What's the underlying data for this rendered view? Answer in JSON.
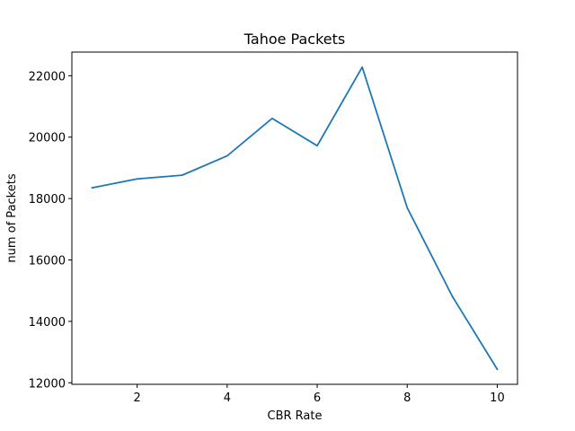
{
  "chart_data": {
    "type": "line",
    "title": "Tahoe Packets",
    "xlabel": "CBR Rate",
    "ylabel": "num of Packets",
    "x": [
      1,
      2,
      3,
      4,
      5,
      6,
      7,
      8,
      9,
      10
    ],
    "series": [
      {
        "values": [
          18350,
          18640,
          18760,
          19390,
          20610,
          19720,
          22280,
          17700,
          14820,
          12440
        ],
        "color": "#1f77b4"
      }
    ],
    "xlim": [
      0.55,
      10.45
    ],
    "ylim": [
      11950,
      22770
    ],
    "xticks": [
      2,
      4,
      6,
      8,
      10
    ],
    "xtick_labels": [
      "2",
      "4",
      "6",
      "8",
      "10"
    ],
    "yticks": [
      12000,
      14000,
      16000,
      18000,
      20000,
      22000
    ],
    "ytick_labels": [
      "12000",
      "14000",
      "16000",
      "18000",
      "20000",
      "22000"
    ],
    "grid": false,
    "legend": "none"
  }
}
